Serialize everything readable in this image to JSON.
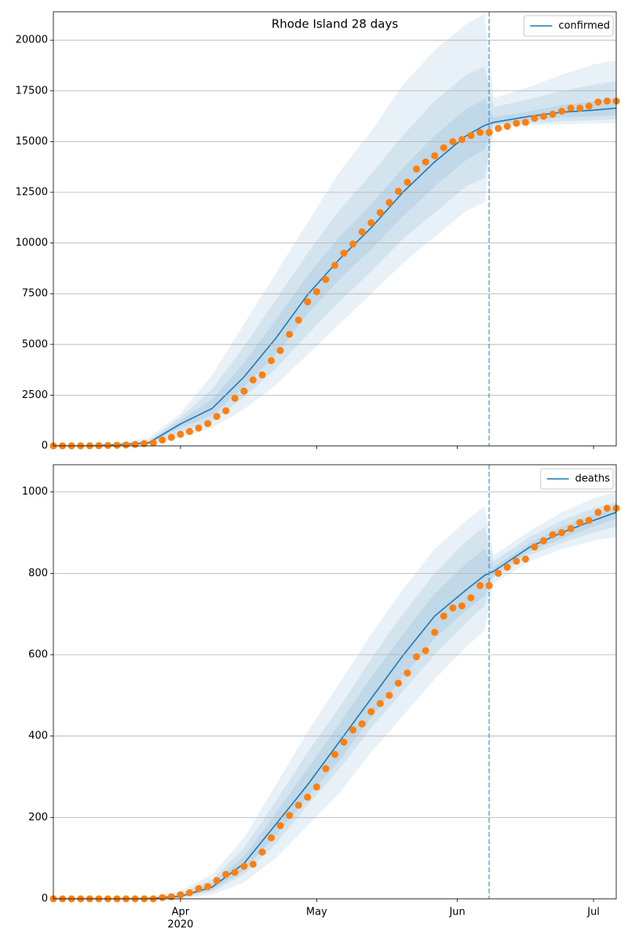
{
  "chart_data": [
    {
      "type": "line",
      "title": "Rhode Island 28 days",
      "legend": "upper right",
      "grid": true,
      "xlim": [
        "2020-03-04",
        "2020-07-06"
      ],
      "ylim": [
        0,
        21400
      ],
      "yticks": [
        0,
        2500,
        5000,
        7500,
        10000,
        12500,
        15000,
        17500,
        20000
      ],
      "vline": "2020-06-08",
      "x": [
        "2020-03-04",
        "2020-03-11",
        "2020-03-18",
        "2020-03-25",
        "2020-04-01",
        "2020-04-08",
        "2020-04-15",
        "2020-04-22",
        "2020-04-29",
        "2020-05-06",
        "2020-05-13",
        "2020-05-20",
        "2020-05-27",
        "2020-06-03",
        "2020-06-07",
        "2020-06-09",
        "2020-06-17",
        "2020-06-24",
        "2020-07-01",
        "2020-07-06"
      ],
      "series": [
        {
          "name": "confirmed",
          "color": "#1f77b4",
          "values": [
            0,
            0,
            50,
            150,
            1080,
            1850,
            3400,
            5300,
            7450,
            9200,
            10750,
            12500,
            14000,
            15300,
            15800,
            15950,
            16250,
            16450,
            16550,
            16650
          ]
        }
      ],
      "bands": [
        {
          "color": "#1f77b4",
          "lower": [
            0,
            0,
            0,
            50,
            400,
            900,
            1800,
            3000,
            4500,
            6000,
            7500,
            9000,
            10300,
            11600,
            12000,
            15700,
            15800,
            15850,
            15900,
            15900
          ],
          "upper": [
            0,
            20,
            150,
            400,
            1600,
            3500,
            6000,
            8500,
            11000,
            13500,
            15500,
            17800,
            19500,
            20800,
            21300,
            17150,
            17700,
            18300,
            18800,
            19000
          ]
        },
        {
          "color": "#1f77b4",
          "lower": [
            0,
            0,
            20,
            80,
            650,
            1200,
            2400,
            3800,
            5500,
            7100,
            8600,
            10200,
            11500,
            12800,
            13200,
            15800,
            15900,
            16000,
            16050,
            16100
          ],
          "upper": [
            0,
            10,
            100,
            280,
            1400,
            2800,
            4900,
            7200,
            9500,
            11600,
            13400,
            15300,
            17000,
            18300,
            18700,
            16700,
            17100,
            17500,
            17800,
            18000
          ]
        },
        {
          "color": "#1f77b4",
          "lower": [
            0,
            0,
            35,
            110,
            900,
            1500,
            2900,
            4500,
            6500,
            8200,
            9700,
            11300,
            12800,
            14100,
            14600,
            15850,
            16050,
            16200,
            16250,
            16300
          ],
          "upper": [
            0,
            5,
            70,
            200,
            1250,
            2300,
            4100,
            6200,
            8400,
            10300,
            11900,
            13700,
            15300,
            16600,
            17100,
            16200,
            16500,
            16800,
            17000,
            17100
          ]
        }
      ],
      "scatter": {
        "color": "#ff7f0e",
        "x": [
          "2020-03-04",
          "2020-03-06",
          "2020-03-08",
          "2020-03-10",
          "2020-03-12",
          "2020-03-14",
          "2020-03-16",
          "2020-03-18",
          "2020-03-20",
          "2020-03-22",
          "2020-03-24",
          "2020-03-26",
          "2020-03-28",
          "2020-03-30",
          "2020-04-01",
          "2020-04-03",
          "2020-04-05",
          "2020-04-07",
          "2020-04-09",
          "2020-04-11",
          "2020-04-13",
          "2020-04-15",
          "2020-04-17",
          "2020-04-19",
          "2020-04-21",
          "2020-04-23",
          "2020-04-25",
          "2020-04-27",
          "2020-04-29",
          "2020-05-01",
          "2020-05-03",
          "2020-05-05",
          "2020-05-07",
          "2020-05-09",
          "2020-05-11",
          "2020-05-13",
          "2020-05-15",
          "2020-05-17",
          "2020-05-19",
          "2020-05-21",
          "2020-05-23",
          "2020-05-25",
          "2020-05-27",
          "2020-05-29",
          "2020-05-31",
          "2020-06-02",
          "2020-06-04",
          "2020-06-06",
          "2020-06-08",
          "2020-06-10",
          "2020-06-12",
          "2020-06-14",
          "2020-06-16",
          "2020-06-18",
          "2020-06-20",
          "2020-06-22",
          "2020-06-24",
          "2020-06-26",
          "2020-06-28",
          "2020-06-30",
          "2020-07-02",
          "2020-07-04",
          "2020-07-06"
        ],
        "values": [
          2,
          2,
          3,
          3,
          5,
          10,
          20,
          30,
          45,
          70,
          110,
          150,
          290,
          420,
          570,
          710,
          880,
          1100,
          1450,
          1730,
          2350,
          2700,
          3250,
          3500,
          4200,
          4700,
          5500,
          6200,
          7100,
          7600,
          8200,
          8900,
          9500,
          9950,
          10550,
          11000,
          11500,
          12000,
          12550,
          13000,
          13650,
          14000,
          14300,
          14700,
          15000,
          15100,
          15300,
          15450,
          15450,
          15650,
          15750,
          15900,
          15950,
          16150,
          16250,
          16350,
          16500,
          16650,
          16650,
          16750,
          16950,
          17000,
          17000
        ]
      }
    },
    {
      "type": "line",
      "legend": "upper right",
      "grid": true,
      "xlim": [
        "2020-03-04",
        "2020-07-06"
      ],
      "ylim": [
        0,
        1067
      ],
      "yticks": [
        0,
        200,
        400,
        600,
        800,
        1000
      ],
      "xticks": [
        {
          "value": "2020-04-01",
          "label": "Apr"
        },
        {
          "value": "2020-05-01",
          "label": "May"
        },
        {
          "value": "2020-06-01",
          "label": "Jun"
        },
        {
          "value": "2020-07-01",
          "label": "Jul"
        }
      ],
      "year_label": "2020",
      "vline": "2020-06-08",
      "x": [
        "2020-03-04",
        "2020-03-11",
        "2020-03-18",
        "2020-03-25",
        "2020-04-01",
        "2020-04-08",
        "2020-04-15",
        "2020-04-22",
        "2020-04-29",
        "2020-05-06",
        "2020-05-13",
        "2020-05-20",
        "2020-05-27",
        "2020-06-03",
        "2020-06-07",
        "2020-06-09",
        "2020-06-17",
        "2020-06-24",
        "2020-07-01",
        "2020-07-06"
      ],
      "series": [
        {
          "name": "deaths",
          "color": "#1f77b4",
          "values": [
            0,
            0,
            0,
            1,
            6,
            29,
            87,
            183,
            280,
            386,
            492,
            598,
            695,
            760,
            795,
            805,
            865,
            900,
            930,
            950
          ]
        }
      ],
      "bands": [
        {
          "color": "#1f77b4",
          "lower": [
            0,
            0,
            0,
            0,
            0,
            10,
            40,
            100,
            180,
            260,
            360,
            450,
            540,
            620,
            660,
            775,
            830,
            860,
            880,
            890
          ],
          "upper": [
            0,
            0,
            1,
            2,
            20,
            60,
            150,
            280,
            410,
            530,
            650,
            760,
            860,
            930,
            965,
            845,
            905,
            950,
            985,
            1000
          ]
        },
        {
          "color": "#1f77b4",
          "lower": [
            0,
            0,
            0,
            0,
            2,
            18,
            60,
            135,
            230,
            320,
            420,
            510,
            600,
            680,
            720,
            790,
            845,
            875,
            900,
            915
          ],
          "upper": [
            0,
            0,
            0,
            1,
            14,
            48,
            125,
            240,
            360,
            470,
            590,
            700,
            800,
            880,
            915,
            830,
            890,
            930,
            960,
            975
          ]
        },
        {
          "color": "#1f77b4",
          "lower": [
            0,
            0,
            0,
            0,
            4,
            22,
            70,
            155,
            250,
            340,
            445,
            545,
            640,
            710,
            745,
            798,
            855,
            885,
            915,
            935
          ],
          "upper": [
            0,
            0,
            0,
            1,
            10,
            38,
            105,
            210,
            320,
            430,
            545,
            650,
            750,
            825,
            860,
            815,
            875,
            915,
            945,
            962
          ]
        }
      ],
      "scatter": {
        "color": "#ff7f0e",
        "x": [
          "2020-03-04",
          "2020-03-06",
          "2020-03-08",
          "2020-03-10",
          "2020-03-12",
          "2020-03-14",
          "2020-03-16",
          "2020-03-18",
          "2020-03-20",
          "2020-03-22",
          "2020-03-24",
          "2020-03-26",
          "2020-03-28",
          "2020-03-30",
          "2020-04-01",
          "2020-04-03",
          "2020-04-05",
          "2020-04-07",
          "2020-04-09",
          "2020-04-11",
          "2020-04-13",
          "2020-04-15",
          "2020-04-17",
          "2020-04-19",
          "2020-04-21",
          "2020-04-23",
          "2020-04-25",
          "2020-04-27",
          "2020-04-29",
          "2020-05-01",
          "2020-05-03",
          "2020-05-05",
          "2020-05-07",
          "2020-05-09",
          "2020-05-11",
          "2020-05-13",
          "2020-05-15",
          "2020-05-17",
          "2020-05-19",
          "2020-05-21",
          "2020-05-23",
          "2020-05-25",
          "2020-05-27",
          "2020-05-29",
          "2020-05-31",
          "2020-06-02",
          "2020-06-04",
          "2020-06-06",
          "2020-06-08",
          "2020-06-10",
          "2020-06-12",
          "2020-06-14",
          "2020-06-16",
          "2020-06-18",
          "2020-06-20",
          "2020-06-22",
          "2020-06-24",
          "2020-06-26",
          "2020-06-28",
          "2020-06-30",
          "2020-07-02",
          "2020-07-04",
          "2020-07-06"
        ],
        "values": [
          0,
          0,
          0,
          0,
          0,
          0,
          0,
          0,
          0,
          0,
          0,
          0,
          3,
          5,
          10,
          15,
          25,
          30,
          45,
          60,
          65,
          80,
          85,
          115,
          150,
          180,
          205,
          230,
          250,
          275,
          320,
          355,
          385,
          415,
          430,
          460,
          480,
          500,
          530,
          555,
          595,
          610,
          655,
          695,
          715,
          720,
          740,
          770,
          770,
          800,
          815,
          830,
          835,
          865,
          880,
          895,
          900,
          910,
          925,
          930,
          950,
          960,
          960
        ]
      }
    }
  ]
}
